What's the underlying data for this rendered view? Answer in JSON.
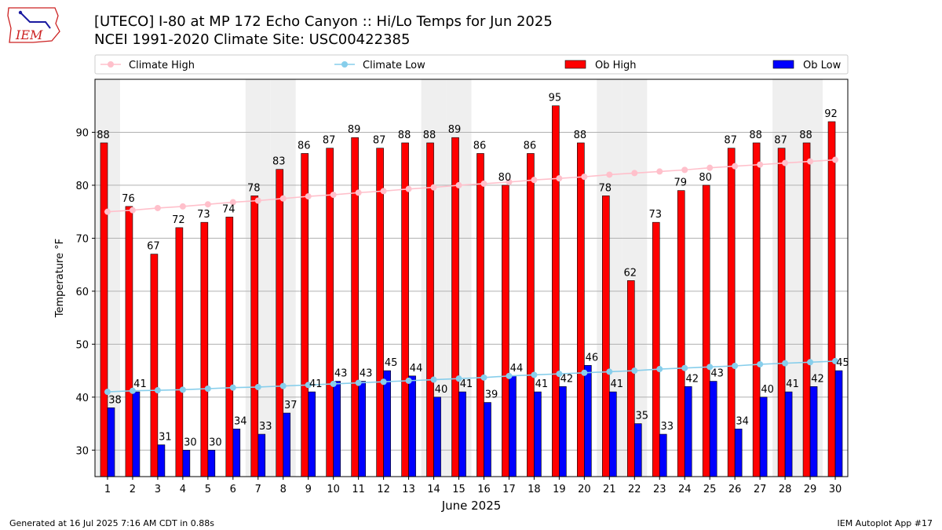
{
  "logo": {
    "text": "IEM"
  },
  "header": {
    "title": "[UTECO] I-80 at MP 172 Echo Canyon  :: Hi/Lo Temps for Jun 2025",
    "subtitle": "NCEI 1991-2020 Climate Site: USC00422385"
  },
  "footer": {
    "left": "Generated at 16 Jul 2025 7:16 AM CDT in 0.88s",
    "right": "IEM Autoplot App #17"
  },
  "chart_data": {
    "type": "bar",
    "xlabel": "June 2025",
    "ylabel": "Temperature °F",
    "ylim": [
      25,
      100
    ],
    "yticks": [
      30,
      40,
      50,
      60,
      70,
      80,
      90
    ],
    "grid": "horizontal",
    "weekend_shading": [
      1,
      7,
      8,
      14,
      15,
      21,
      22,
      28,
      29
    ],
    "legend_position": "top",
    "categories": [
      1,
      2,
      3,
      4,
      5,
      6,
      7,
      8,
      9,
      10,
      11,
      12,
      13,
      14,
      15,
      16,
      17,
      18,
      19,
      20,
      21,
      22,
      23,
      24,
      25,
      26,
      27,
      28,
      29,
      30
    ],
    "series": [
      {
        "name": "Climate High",
        "kind": "line",
        "color": "#FFC0CB",
        "values": [
          75.0,
          75.3,
          75.7,
          76.0,
          76.4,
          76.8,
          77.1,
          77.5,
          77.9,
          78.2,
          78.6,
          78.9,
          79.3,
          79.6,
          80.0,
          80.3,
          80.6,
          81.0,
          81.3,
          81.6,
          82.0,
          82.3,
          82.6,
          82.9,
          83.3,
          83.6,
          83.9,
          84.2,
          84.5,
          84.8
        ]
      },
      {
        "name": "Climate Low",
        "kind": "line",
        "color": "#87CEEB",
        "values": [
          41.0,
          41.2,
          41.3,
          41.4,
          41.6,
          41.8,
          41.9,
          42.1,
          42.3,
          42.5,
          42.7,
          42.9,
          43.1,
          43.3,
          43.5,
          43.7,
          44.0,
          44.2,
          44.4,
          44.6,
          44.8,
          45.0,
          45.3,
          45.5,
          45.7,
          45.9,
          46.2,
          46.4,
          46.6,
          46.8
        ]
      },
      {
        "name": "Ob High",
        "kind": "bar",
        "color": "#FF0000",
        "values": [
          88,
          76,
          67,
          72,
          73,
          74,
          78,
          83,
          86,
          87,
          89,
          87,
          88,
          88,
          89,
          86,
          80,
          86,
          95,
          88,
          78,
          62,
          73,
          79,
          80,
          87,
          88,
          87,
          88,
          92
        ]
      },
      {
        "name": "Ob Low",
        "kind": "bar",
        "color": "#0000FF",
        "values": [
          38,
          41,
          31,
          30,
          30,
          34,
          33,
          37,
          41,
          43,
          43,
          45,
          44,
          40,
          41,
          39,
          44,
          41,
          42,
          46,
          41,
          35,
          33,
          42,
          43,
          34,
          40,
          41,
          42,
          45
        ]
      }
    ]
  }
}
